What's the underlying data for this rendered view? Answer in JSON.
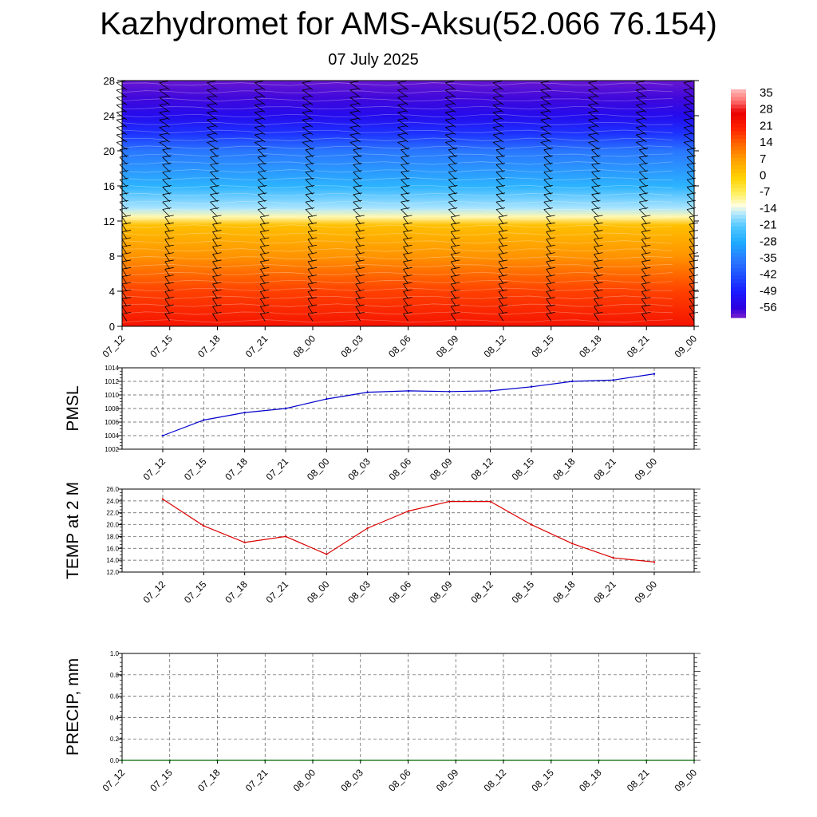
{
  "title": "Kazhydromet for AMS-Aksu(52.066 76.154)",
  "subtitle": "07 July 2025",
  "colors": {
    "pmsl_line": "#0000cc",
    "temp_line": "#dd0000",
    "precip_line": "#006400"
  },
  "chart_data": [
    {
      "type": "heatmap",
      "name": "cross-section",
      "ylim": [
        0,
        28
      ],
      "yticks": [
        "0",
        "4",
        "8",
        "12",
        "16",
        "20",
        "24",
        "28"
      ],
      "categories": [
        "07_12",
        "07_15",
        "07_18",
        "07_21",
        "08_00",
        "08_03",
        "08_06",
        "08_09",
        "08_12",
        "08_15",
        "08_18",
        "08_21",
        "09_00"
      ],
      "colorbar_labels": [
        "35",
        "28",
        "21",
        "14",
        "7",
        "0",
        "-7",
        "-14",
        "-21",
        "-28",
        "-35",
        "-42",
        "-49",
        "-56"
      ],
      "colorbar_range": [
        -60,
        38
      ],
      "level_temperatures": [
        [
          0,
          24
        ],
        [
          4,
          18
        ],
        [
          8,
          9
        ],
        [
          11.5,
          3
        ],
        [
          12.5,
          -10
        ],
        [
          13.5,
          -16
        ],
        [
          16,
          -26
        ],
        [
          20,
          -36
        ],
        [
          22,
          -46
        ],
        [
          24,
          -53
        ],
        [
          26,
          -57
        ],
        [
          28,
          -59
        ]
      ]
    },
    {
      "type": "line",
      "name": "pmsl",
      "ylabel": "PMSL",
      "ylim": [
        1002,
        1014
      ],
      "yticks": [
        "1002",
        "1004",
        "1006",
        "1008",
        "1010",
        "1012",
        "1014"
      ],
      "x": [
        "07_12",
        "07_15",
        "07_18",
        "07_21",
        "08_00",
        "08_03",
        "08_06",
        "08_09",
        "08_12",
        "08_15",
        "08_18",
        "08_21",
        "09_00"
      ],
      "values": [
        1004.0,
        1006.3,
        1007.4,
        1008.0,
        1009.4,
        1010.4,
        1010.6,
        1010.5,
        1010.6,
        1011.2,
        1012.0,
        1012.2,
        1013.1
      ]
    },
    {
      "type": "line",
      "name": "temp",
      "ylabel": "TEMP at 2 M",
      "ylim": [
        12.0,
        26.0
      ],
      "yticks": [
        "12.0",
        "14.0",
        "16.0",
        "18.0",
        "20.0",
        "22.0",
        "24.0",
        "26.0"
      ],
      "x": [
        "07_12",
        "07_15",
        "07_18",
        "07_21",
        "08_00",
        "08_03",
        "08_06",
        "08_09",
        "08_12",
        "08_15",
        "08_18",
        "08_21",
        "09_00"
      ],
      "values": [
        24.3,
        19.8,
        17.0,
        18.0,
        15.0,
        19.4,
        22.3,
        23.9,
        23.9,
        20.0,
        16.8,
        14.4,
        13.7
      ]
    },
    {
      "type": "line",
      "name": "precip",
      "ylabel": "PRECIP, mm",
      "ylim": [
        0.0,
        1.0
      ],
      "yticks": [
        "0.0",
        "0.2",
        "0.4",
        "0.6",
        "0.8",
        "1.0"
      ],
      "x": [
        "07_12",
        "07_15",
        "07_18",
        "07_21",
        "08_00",
        "08_03",
        "08_06",
        "08_09",
        "08_12",
        "08_15",
        "08_18",
        "08_21",
        "09_00"
      ],
      "values": [
        0,
        0,
        0,
        0,
        0,
        0,
        0,
        0,
        0,
        0,
        0,
        0,
        0
      ]
    }
  ]
}
